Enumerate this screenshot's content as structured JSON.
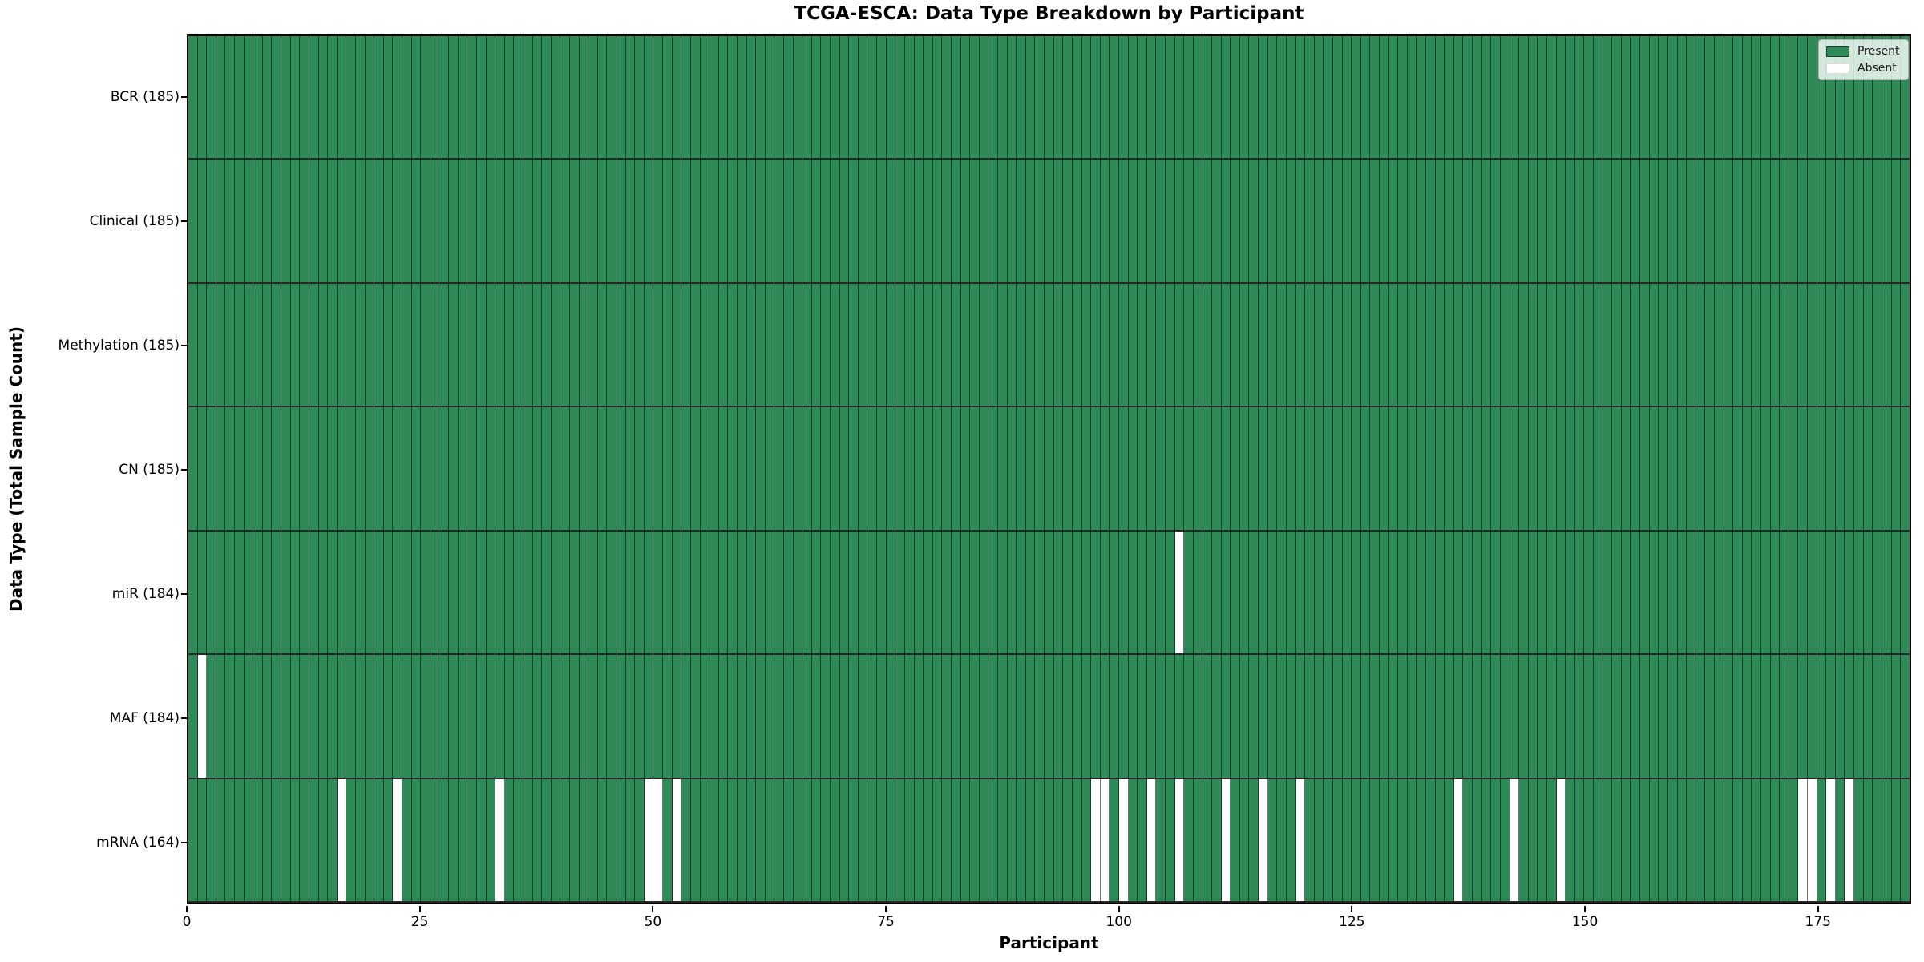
{
  "chart_data": {
    "type": "heatmap",
    "title": "TCGA-ESCA: Data Type Breakdown by Participant",
    "xlabel": "Participant",
    "ylabel": "Data Type (Total Sample Count)",
    "x_ticks": [
      0,
      25,
      50,
      75,
      100,
      125,
      150,
      175
    ],
    "x_range": [
      0,
      185
    ],
    "n_participants": 185,
    "grid": true,
    "rows": [
      {
        "label": "BCR (185)",
        "data_type": "BCR",
        "present_count": 185,
        "absent_participants": []
      },
      {
        "label": "Clinical (185)",
        "data_type": "Clinical",
        "present_count": 185,
        "absent_participants": []
      },
      {
        "label": "Methylation (185)",
        "data_type": "Methylation",
        "present_count": 185,
        "absent_participants": []
      },
      {
        "label": "CN (185)",
        "data_type": "CN",
        "present_count": 185,
        "absent_participants": []
      },
      {
        "label": "miR (184)",
        "data_type": "miR",
        "present_count": 184,
        "absent_participants": [
          106
        ]
      },
      {
        "label": "MAF (184)",
        "data_type": "MAF",
        "present_count": 184,
        "absent_participants": [
          1
        ]
      },
      {
        "label": "mRNA (164)",
        "data_type": "mRNA",
        "present_count": 164,
        "absent_participants": [
          16,
          22,
          33,
          49,
          50,
          52,
          97,
          98,
          100,
          103,
          106,
          111,
          115,
          119,
          136,
          142,
          147,
          173,
          174,
          176,
          178
        ]
      }
    ],
    "legend": {
      "position": "upper right",
      "entries": [
        {
          "label": "Present",
          "color": "#2e8b57"
        },
        {
          "label": "Absent",
          "color": "#ffffff"
        }
      ]
    },
    "colors": {
      "present": "#2e8b57",
      "absent": "#ffffff",
      "cell_edge": "rgba(0,0,0,0.55)",
      "row_divider": "rgba(0,0,0,0.85)",
      "spine": "#000000"
    }
  }
}
